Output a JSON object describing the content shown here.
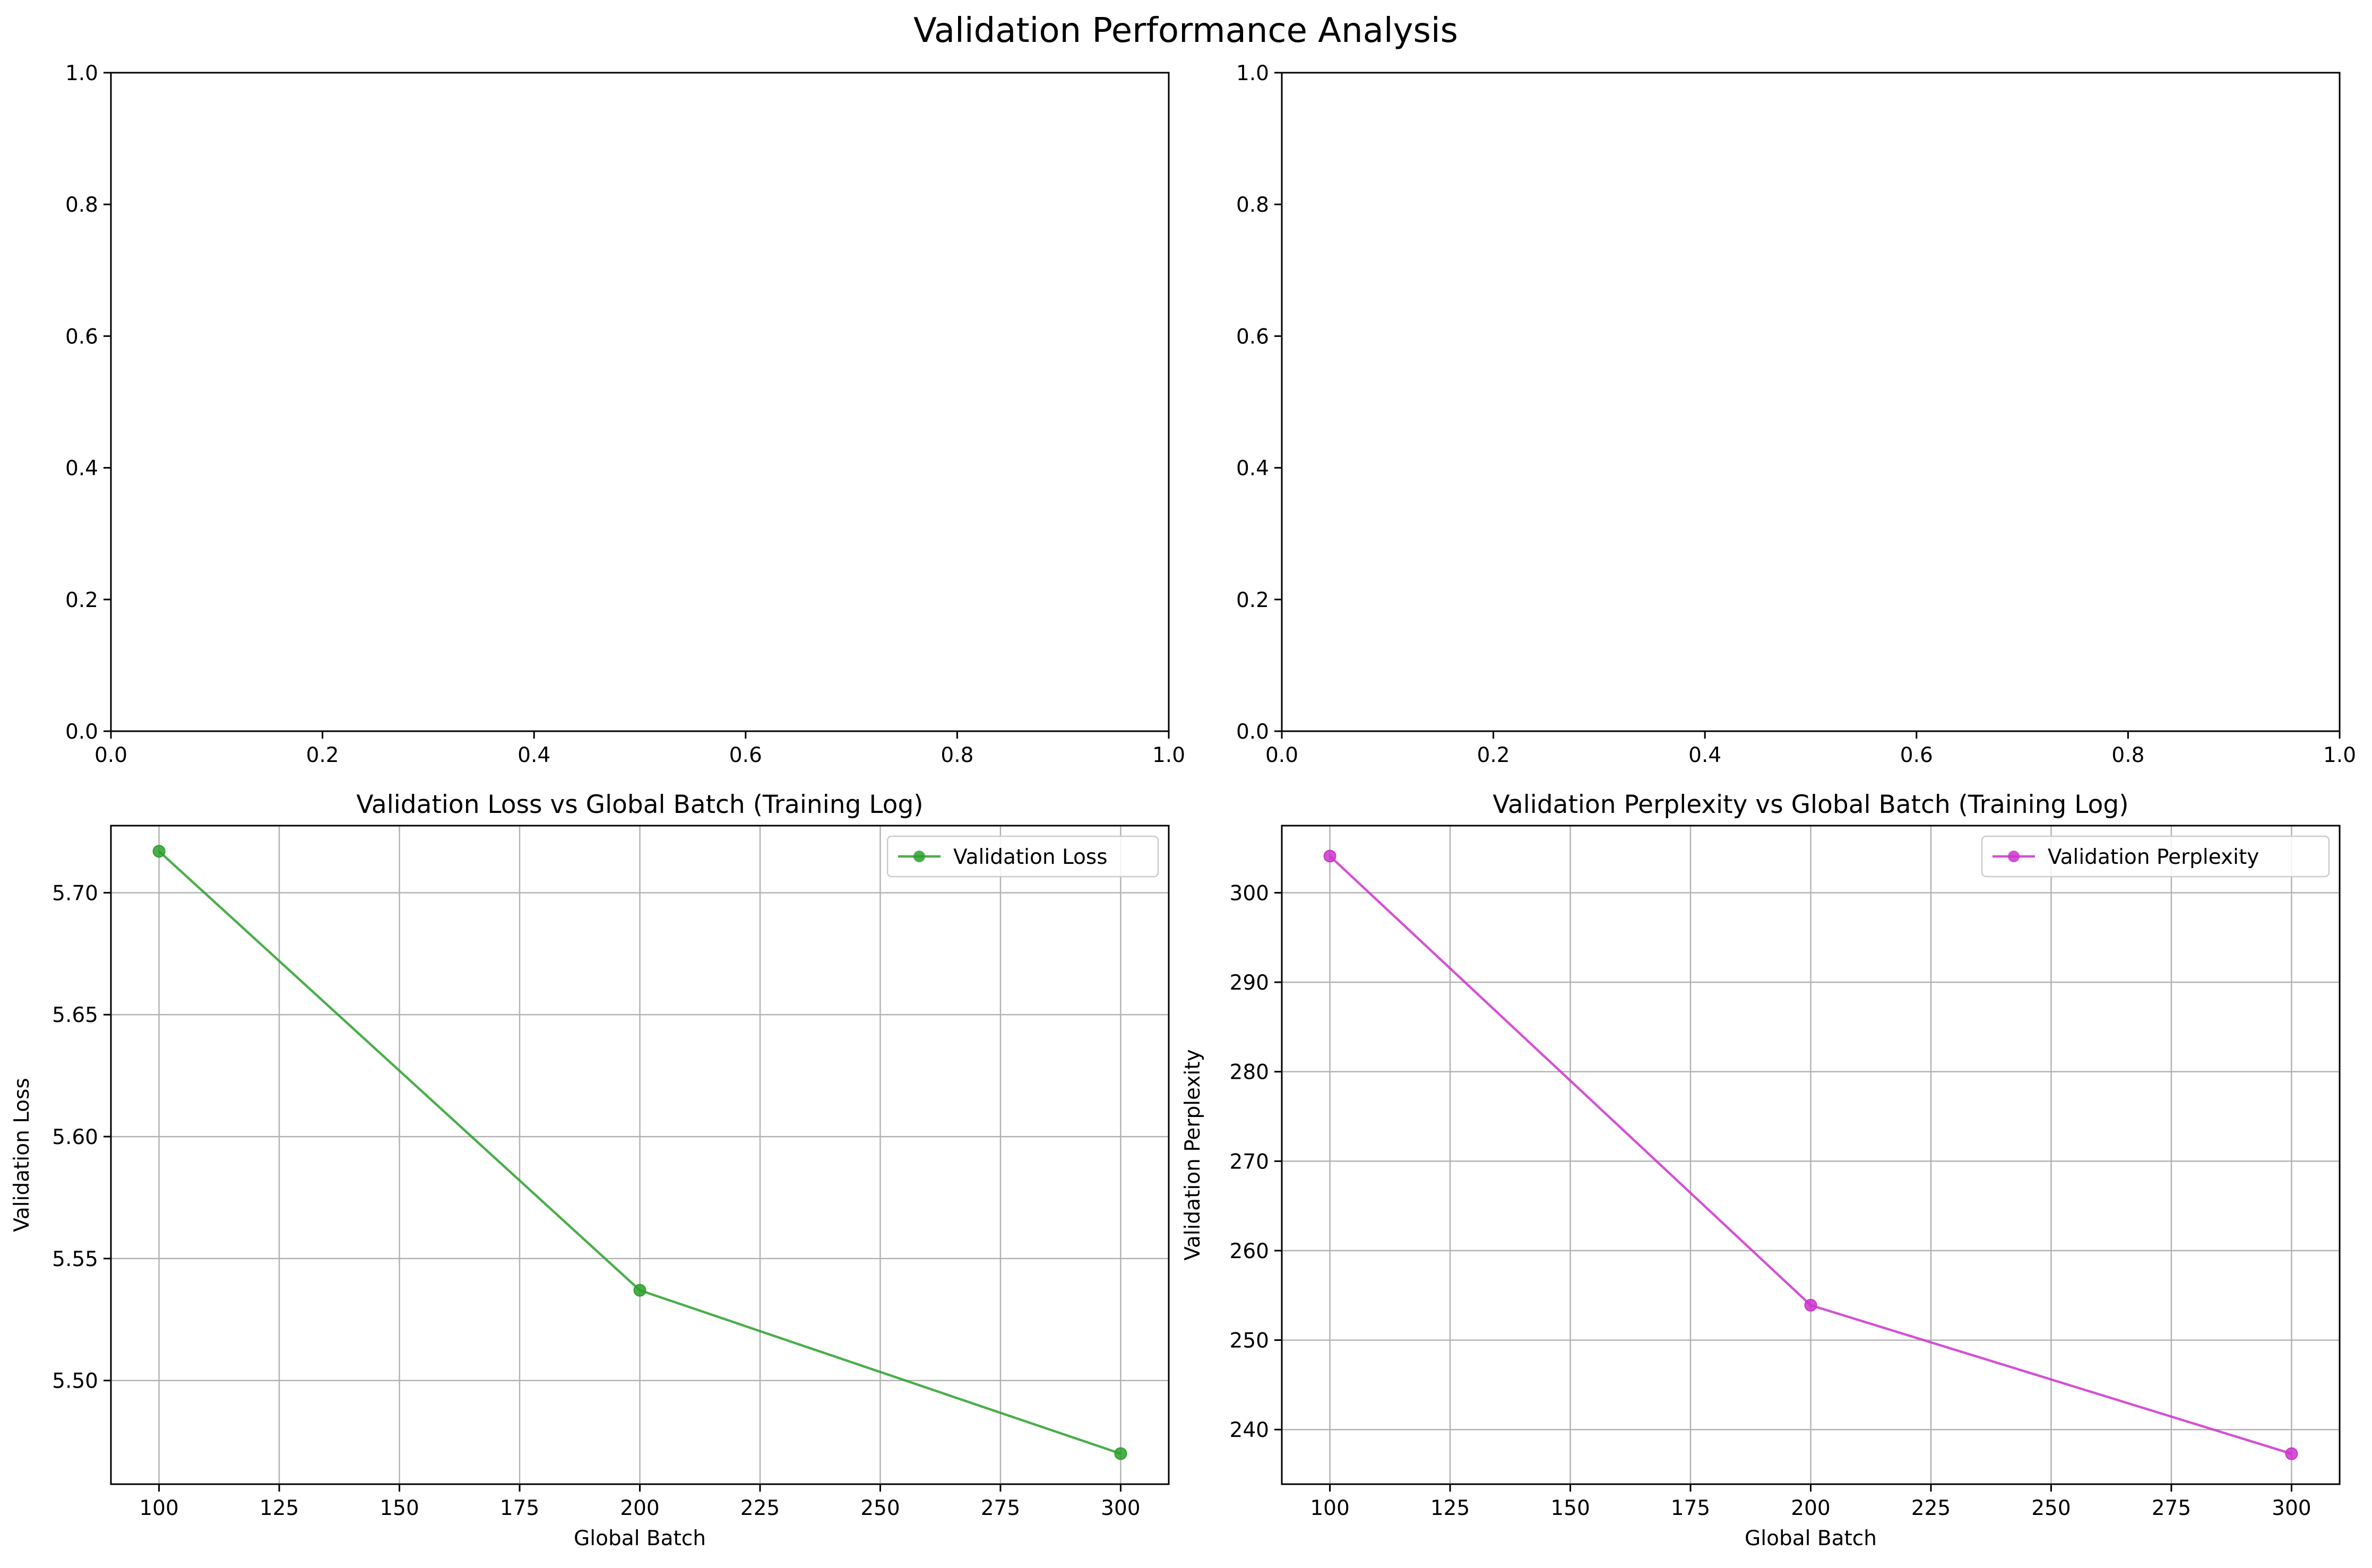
{
  "figure": {
    "suptitle": "Validation Performance Analysis"
  },
  "chart_data": [
    {
      "type": "line",
      "title": "",
      "xlabel": "",
      "ylabel": "",
      "xlim": [
        0,
        1
      ],
      "ylim": [
        0,
        1
      ],
      "x_ticks": [
        0.0,
        0.2,
        0.4,
        0.6,
        0.8,
        1.0
      ],
      "y_ticks": [
        0.0,
        0.2,
        0.4,
        0.6,
        0.8,
        1.0
      ],
      "x_tick_labels": [
        "0.0",
        "0.2",
        "0.4",
        "0.6",
        "0.8",
        "1.0"
      ],
      "y_tick_labels": [
        "0.0",
        "0.2",
        "0.4",
        "0.6",
        "0.8",
        "1.0"
      ],
      "grid": false,
      "series": []
    },
    {
      "type": "line",
      "title": "",
      "xlabel": "",
      "ylabel": "",
      "xlim": [
        0,
        1
      ],
      "ylim": [
        0,
        1
      ],
      "x_ticks": [
        0.0,
        0.2,
        0.4,
        0.6,
        0.8,
        1.0
      ],
      "y_ticks": [
        0.0,
        0.2,
        0.4,
        0.6,
        0.8,
        1.0
      ],
      "x_tick_labels": [
        "0.0",
        "0.2",
        "0.4",
        "0.6",
        "0.8",
        "1.0"
      ],
      "y_tick_labels": [
        "0.0",
        "0.2",
        "0.4",
        "0.6",
        "0.8",
        "1.0"
      ],
      "grid": false,
      "series": []
    },
    {
      "type": "line",
      "title": "Validation Loss vs Global Batch (Training Log)",
      "xlabel": "Global Batch",
      "ylabel": "Validation Loss",
      "xlim": [
        90,
        310
      ],
      "ylim": [
        5.4575,
        5.7275
      ],
      "x_ticks": [
        100,
        125,
        150,
        175,
        200,
        225,
        250,
        275,
        300
      ],
      "y_ticks": [
        5.5,
        5.55,
        5.6,
        5.65,
        5.7
      ],
      "x_tick_labels": [
        "100",
        "125",
        "150",
        "175",
        "200",
        "225",
        "250",
        "275",
        "300"
      ],
      "y_tick_labels": [
        "5.50",
        "5.55",
        "5.60",
        "5.65",
        "5.70"
      ],
      "grid": true,
      "legend": "top-right",
      "series": [
        {
          "name": "Validation Loss",
          "color": "#2ca02c",
          "marker": "circle",
          "x": [
            100,
            200,
            300
          ],
          "y": [
            5.717,
            5.537,
            5.47
          ]
        }
      ]
    },
    {
      "type": "line",
      "title": "Validation Perplexity vs Global Batch (Training Log)",
      "xlabel": "Global Batch",
      "ylabel": "Validation Perplexity",
      "xlim": [
        90,
        310
      ],
      "ylim": [
        233.9,
        307.5
      ],
      "x_ticks": [
        100,
        125,
        150,
        175,
        200,
        225,
        250,
        275,
        300
      ],
      "y_ticks": [
        240,
        250,
        260,
        270,
        280,
        290,
        300
      ],
      "x_tick_labels": [
        "100",
        "125",
        "150",
        "175",
        "200",
        "225",
        "250",
        "275",
        "300"
      ],
      "y_tick_labels": [
        "240",
        "250",
        "260",
        "270",
        "280",
        "290",
        "300"
      ],
      "grid": true,
      "legend": "top-right",
      "series": [
        {
          "name": "Validation Perplexity",
          "color": "#cc33cc",
          "marker": "circle",
          "x": [
            100,
            200,
            300
          ],
          "y": [
            304.1,
            253.9,
            237.3
          ]
        }
      ]
    }
  ]
}
